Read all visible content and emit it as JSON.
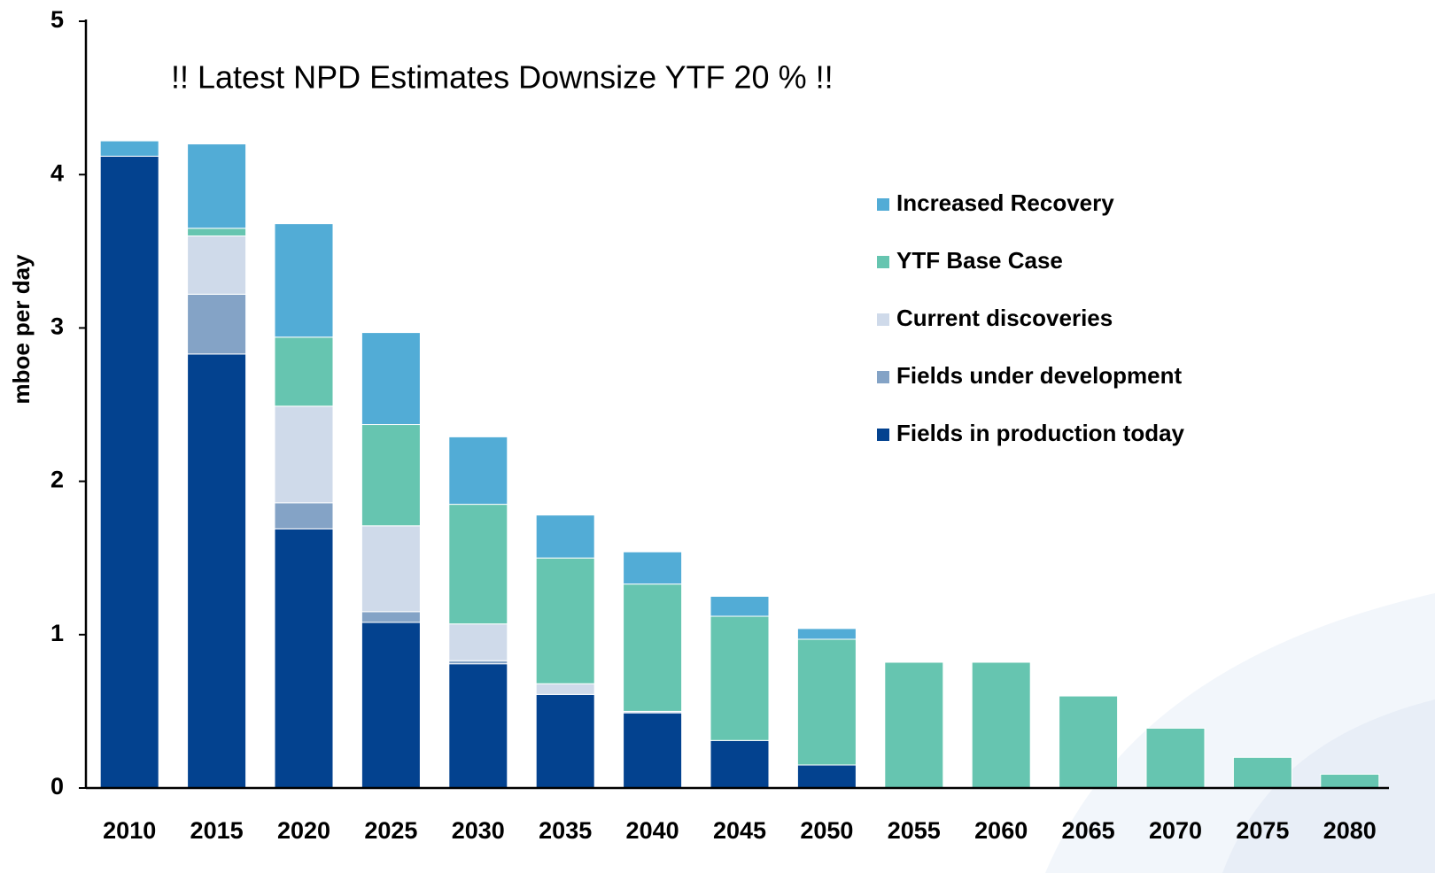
{
  "chart_data": {
    "type": "stacked_bar",
    "title": "!! Latest NPD Estimates  Downsize YTF 20 % !!",
    "y_label": "mboe per day",
    "categories": [
      "2010",
      "2015",
      "2020",
      "2025",
      "2030",
      "2035",
      "2040",
      "2045",
      "2050",
      "2055",
      "2060",
      "2065",
      "2070",
      "2075",
      "2080"
    ],
    "series": [
      {
        "name": "Fields in production today",
        "color": "#03428f",
        "values": [
          4.12,
          2.83,
          1.69,
          1.08,
          0.81,
          0.61,
          0.49,
          0.31,
          0.15,
          0,
          0,
          0,
          0,
          0,
          0
        ]
      },
      {
        "name": "Fields under development",
        "color": "#84a3c6",
        "values": [
          0,
          0.39,
          0.17,
          0.07,
          0.02,
          0,
          0,
          0,
          0,
          0,
          0,
          0,
          0,
          0,
          0
        ]
      },
      {
        "name": "Current discoveries",
        "color": "#cfdaea",
        "values": [
          0,
          0.38,
          0.63,
          0.56,
          0.24,
          0.07,
          0.01,
          0,
          0,
          0,
          0,
          0,
          0,
          0,
          0
        ]
      },
      {
        "name": "YTF Base  Case",
        "color": "#66c5b0",
        "values": [
          0,
          0.05,
          0.45,
          0.66,
          0.78,
          0.82,
          0.83,
          0.81,
          0.82,
          0.82,
          0.82,
          0.6,
          0.39,
          0.2,
          0.09
        ]
      },
      {
        "name": "Increased  Recovery",
        "color": "#52acd6",
        "values": [
          0.1,
          0.55,
          0.74,
          0.6,
          0.44,
          0.28,
          0.21,
          0.13,
          0.07,
          0,
          0,
          0,
          0,
          0,
          0
        ]
      }
    ],
    "ylim": [
      0,
      5
    ],
    "yticks": [
      0,
      1,
      2,
      3,
      4,
      5
    ],
    "grid": false,
    "legend": "right"
  }
}
